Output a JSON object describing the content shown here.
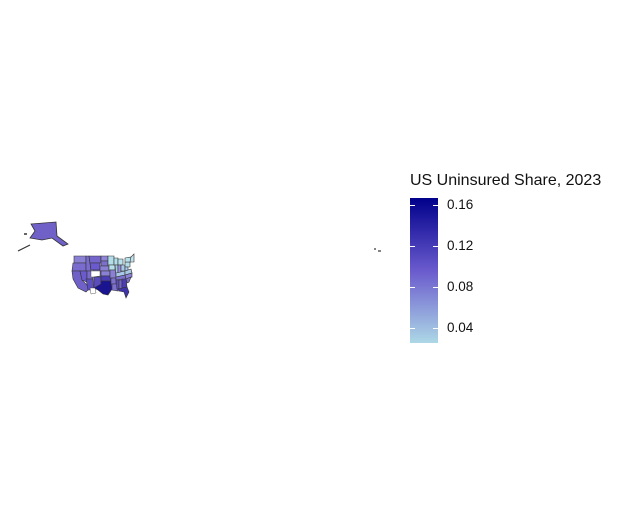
{
  "legend": {
    "title": "US Uninsured Share, 2023",
    "ticks": [
      "0.04",
      "0.08",
      "0.12",
      "0.16"
    ],
    "tick_values": [
      0.04,
      0.08,
      0.12,
      0.16
    ],
    "range": [
      0.025,
      0.167
    ],
    "gradient": {
      "low": "#add8e6",
      "mid": "#6a5acd",
      "high": "#00008b"
    }
  },
  "map_colors": {
    "alaska": "#6f61c8",
    "texas": "#1b1490",
    "border": "#333333"
  }
}
